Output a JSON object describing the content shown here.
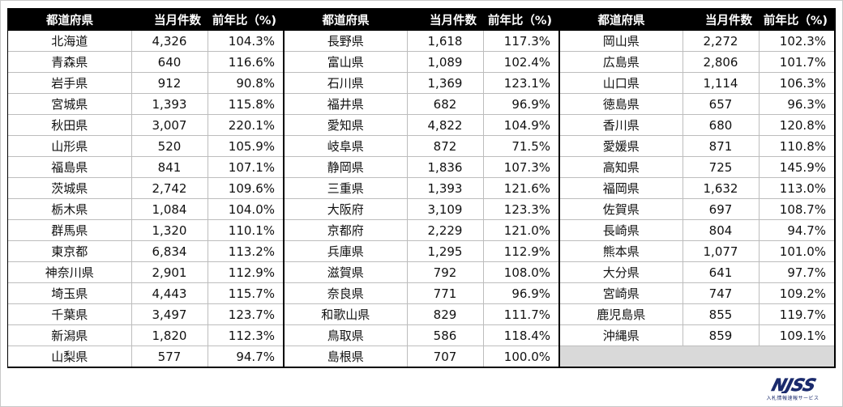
{
  "headers": {
    "pref": "都道府県",
    "count": "当月件数",
    "ratio": "前年比（%)"
  },
  "columns": [
    [
      {
        "pref": "北海道",
        "count": "4,326",
        "ratio": "104.3%"
      },
      {
        "pref": "青森県",
        "count": "640",
        "ratio": "116.6%"
      },
      {
        "pref": "岩手県",
        "count": "912",
        "ratio": "90.8%"
      },
      {
        "pref": "宮城県",
        "count": "1,393",
        "ratio": "115.8%"
      },
      {
        "pref": "秋田県",
        "count": "3,007",
        "ratio": "220.1%"
      },
      {
        "pref": "山形県",
        "count": "520",
        "ratio": "105.9%"
      },
      {
        "pref": "福島県",
        "count": "841",
        "ratio": "107.1%"
      },
      {
        "pref": "茨城県",
        "count": "2,742",
        "ratio": "109.6%"
      },
      {
        "pref": "栃木県",
        "count": "1,084",
        "ratio": "104.0%"
      },
      {
        "pref": "群馬県",
        "count": "1,320",
        "ratio": "110.1%"
      },
      {
        "pref": "東京都",
        "count": "6,834",
        "ratio": "113.2%"
      },
      {
        "pref": "神奈川県",
        "count": "2,901",
        "ratio": "112.9%"
      },
      {
        "pref": "埼玉県",
        "count": "4,443",
        "ratio": "115.7%"
      },
      {
        "pref": "千葉県",
        "count": "3,497",
        "ratio": "123.7%"
      },
      {
        "pref": "新潟県",
        "count": "1,820",
        "ratio": "112.3%"
      },
      {
        "pref": "山梨県",
        "count": "577",
        "ratio": "94.7%"
      }
    ],
    [
      {
        "pref": "長野県",
        "count": "1,618",
        "ratio": "117.3%"
      },
      {
        "pref": "富山県",
        "count": "1,089",
        "ratio": "102.4%"
      },
      {
        "pref": "石川県",
        "count": "1,369",
        "ratio": "123.1%"
      },
      {
        "pref": "福井県",
        "count": "682",
        "ratio": "96.9%"
      },
      {
        "pref": "愛知県",
        "count": "4,822",
        "ratio": "104.9%"
      },
      {
        "pref": "岐阜県",
        "count": "872",
        "ratio": "71.5%"
      },
      {
        "pref": "静岡県",
        "count": "1,836",
        "ratio": "107.3%"
      },
      {
        "pref": "三重県",
        "count": "1,393",
        "ratio": "121.6%"
      },
      {
        "pref": "大阪府",
        "count": "3,109",
        "ratio": "123.3%"
      },
      {
        "pref": "京都府",
        "count": "2,229",
        "ratio": "121.0%"
      },
      {
        "pref": "兵庫県",
        "count": "1,295",
        "ratio": "112.9%"
      },
      {
        "pref": "滋賀県",
        "count": "792",
        "ratio": "108.0%"
      },
      {
        "pref": "奈良県",
        "count": "771",
        "ratio": "96.9%"
      },
      {
        "pref": "和歌山県",
        "count": "829",
        "ratio": "111.7%"
      },
      {
        "pref": "鳥取県",
        "count": "586",
        "ratio": "118.4%"
      },
      {
        "pref": "島根県",
        "count": "707",
        "ratio": "100.0%"
      }
    ],
    [
      {
        "pref": "岡山県",
        "count": "2,272",
        "ratio": "102.3%"
      },
      {
        "pref": "広島県",
        "count": "2,806",
        "ratio": "101.7%"
      },
      {
        "pref": "山口県",
        "count": "1,114",
        "ratio": "106.3%"
      },
      {
        "pref": "徳島県",
        "count": "657",
        "ratio": "96.3%"
      },
      {
        "pref": "香川県",
        "count": "680",
        "ratio": "120.8%"
      },
      {
        "pref": "愛媛県",
        "count": "871",
        "ratio": "110.8%"
      },
      {
        "pref": "高知県",
        "count": "725",
        "ratio": "145.9%"
      },
      {
        "pref": "福岡県",
        "count": "1,632",
        "ratio": "113.0%"
      },
      {
        "pref": "佐賀県",
        "count": "697",
        "ratio": "108.7%"
      },
      {
        "pref": "長崎県",
        "count": "804",
        "ratio": "94.7%"
      },
      {
        "pref": "熊本県",
        "count": "1,077",
        "ratio": "101.0%"
      },
      {
        "pref": "大分県",
        "count": "641",
        "ratio": "97.7%"
      },
      {
        "pref": "宮崎県",
        "count": "747",
        "ratio": "109.2%"
      },
      {
        "pref": "鹿児島県",
        "count": "855",
        "ratio": "119.7%"
      },
      {
        "pref": "沖縄県",
        "count": "859",
        "ratio": "109.1%"
      }
    ]
  ],
  "logo": {
    "mark": "NJSS",
    "tagline": "入札情報速報サービス",
    "color": "#1a2a6c"
  }
}
